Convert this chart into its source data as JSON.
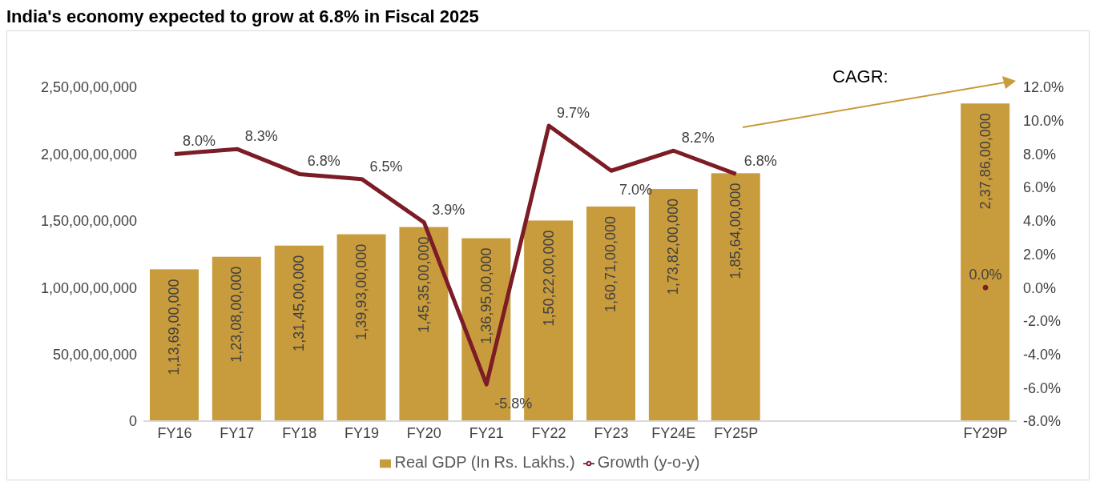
{
  "chart_data": {
    "type": "bar",
    "title": "India's economy expected to grow at 6.8% in Fiscal 2025",
    "categories": [
      "FY16",
      "FY17",
      "FY18",
      "FY19",
      "FY20",
      "FY21",
      "FY22",
      "FY23",
      "FY24E",
      "FY25P",
      null,
      null,
      null,
      "FY29P"
    ],
    "series": [
      {
        "name": "Real GDP (In Rs. Lakhs.)",
        "color": "#c89b3c",
        "values": [
          1136900000,
          1230800000,
          1314500000,
          1399300000,
          1453500000,
          1369500000,
          1502200000,
          1607100000,
          1738200000,
          1856400000,
          null,
          null,
          null,
          2378600000
        ],
        "value_labels": [
          "1,13,69,00,000",
          "1,23,08,00,000",
          "1,31,45,00,000",
          "1,39,93,00,000",
          "1,45,35,00,000",
          "1,36,95,00,000",
          "1,50,22,00,000",
          "1,60,71,00,000",
          "1,73,82,00,000",
          "1,85,64,00,000",
          null,
          null,
          null,
          "2,37,86,00,000"
        ]
      },
      {
        "name": "Growth (y-o-y)",
        "type": "line",
        "axis": "y2",
        "color": "#7b1c26",
        "values": [
          8.0,
          8.3,
          6.8,
          6.5,
          3.9,
          -5.8,
          9.7,
          7.0,
          8.2,
          6.8,
          null,
          null,
          null,
          0.0
        ],
        "value_labels": [
          "8.0%",
          "8.3%",
          "6.8%",
          "6.5%",
          "3.9%",
          "-5.8%",
          "9.7%",
          "7.0%",
          "8.2%",
          "6.8%",
          null,
          null,
          null,
          "0.0%"
        ]
      }
    ],
    "ylim": [
      0,
      2500000000
    ],
    "yticks": [
      {
        "value": 0,
        "label": "0"
      },
      {
        "value": 500000000,
        "label": "50,00,00,000"
      },
      {
        "value": 1000000000,
        "label": "1,00,00,00,000"
      },
      {
        "value": 1500000000,
        "label": "1,50,00,00,000"
      },
      {
        "value": 2000000000,
        "label": "2,00,00,00,000"
      },
      {
        "value": 2500000000,
        "label": "2,50,00,00,000"
      }
    ],
    "y2lim": [
      -8,
      12
    ],
    "y2ticks": [
      {
        "value": -8,
        "label": "-8.0%"
      },
      {
        "value": -6,
        "label": "-6.0%"
      },
      {
        "value": -4,
        "label": "-4.0%"
      },
      {
        "value": -2,
        "label": "-2.0%"
      },
      {
        "value": 0,
        "label": "0.0%"
      },
      {
        "value": 2,
        "label": "2.0%"
      },
      {
        "value": 4,
        "label": "4.0%"
      },
      {
        "value": 6,
        "label": "6.0%"
      },
      {
        "value": 8,
        "label": "8.0%"
      },
      {
        "value": 10,
        "label": "10.0%"
      },
      {
        "value": 12,
        "label": "12.0%"
      }
    ],
    "annotations": [
      "CAGR:"
    ],
    "grid": false,
    "legend": "bottom",
    "marker": "none"
  }
}
